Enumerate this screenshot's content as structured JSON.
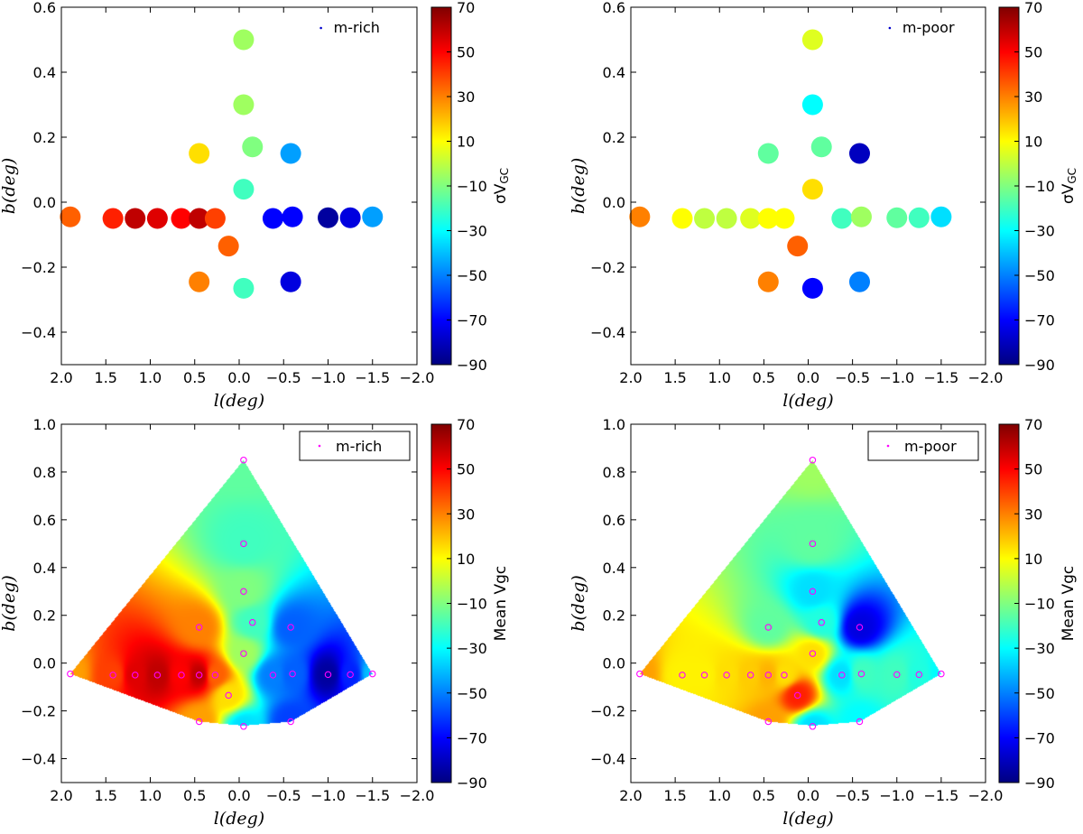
{
  "chart_data": [
    {
      "id": "p1",
      "type": "scatter",
      "xlabel": "l(deg)",
      "ylabel": "b(deg)",
      "xlim": [
        2.0,
        -2.0
      ],
      "ylim": [
        -0.5,
        0.6
      ],
      "xticks": [
        2.0,
        1.5,
        1.0,
        0.5,
        0.0,
        -0.5,
        -1.0,
        -1.5,
        -2.0
      ],
      "xtick_labels": [
        "2.0",
        "1.5",
        "1.0",
        "0.5",
        "0.0",
        "−0.5",
        "−1.0",
        "−1.5",
        "−2.0"
      ],
      "yticks": [
        -0.4,
        -0.2,
        0.0,
        0.2,
        0.4,
        0.6
      ],
      "ytick_labels": [
        "−0.4",
        "−0.2",
        "0.0",
        "0.2",
        "0.4",
        "0.6"
      ],
      "legend": "m-rich",
      "colorbar": {
        "label": "σV",
        "label_sub": "GC",
        "min": -90,
        "max": 70,
        "ticks": [
          -90,
          -70,
          -50,
          -30,
          -10,
          10,
          30,
          50,
          70
        ],
        "tick_labels": [
          "−90",
          "−70",
          "−50",
          "−30",
          "−10",
          "10",
          "30",
          "50",
          "70"
        ]
      },
      "points": [
        {
          "l": 1.9,
          "b": -0.045,
          "v": 35
        },
        {
          "l": 1.42,
          "b": -0.05,
          "v": 45
        },
        {
          "l": 1.17,
          "b": -0.05,
          "v": 60
        },
        {
          "l": 0.92,
          "b": -0.05,
          "v": 55
        },
        {
          "l": 0.65,
          "b": -0.05,
          "v": 50
        },
        {
          "l": 0.45,
          "b": -0.05,
          "v": 60
        },
        {
          "l": 0.27,
          "b": -0.05,
          "v": 40
        },
        {
          "l": 0.45,
          "b": 0.15,
          "v": 15
        },
        {
          "l": 0.45,
          "b": -0.245,
          "v": 30
        },
        {
          "l": 0.12,
          "b": -0.135,
          "v": 35
        },
        {
          "l": -0.05,
          "b": 0.5,
          "v": -5
        },
        {
          "l": -0.05,
          "b": 0.3,
          "v": -5
        },
        {
          "l": -0.15,
          "b": 0.17,
          "v": -10
        },
        {
          "l": -0.05,
          "b": 0.04,
          "v": -20
        },
        {
          "l": -0.05,
          "b": -0.265,
          "v": -20
        },
        {
          "l": -0.58,
          "b": 0.15,
          "v": -45
        },
        {
          "l": -0.38,
          "b": -0.05,
          "v": -70
        },
        {
          "l": -0.6,
          "b": -0.045,
          "v": -70
        },
        {
          "l": -0.58,
          "b": -0.245,
          "v": -75
        },
        {
          "l": -1.0,
          "b": -0.048,
          "v": -85
        },
        {
          "l": -1.25,
          "b": -0.048,
          "v": -75
        },
        {
          "l": -1.5,
          "b": -0.045,
          "v": -45
        }
      ]
    },
    {
      "id": "p2",
      "type": "scatter",
      "xlabel": "l(deg)",
      "ylabel": "b(deg)",
      "xlim": [
        2.0,
        -2.0
      ],
      "ylim": [
        -0.5,
        0.6
      ],
      "xticks": [
        2.0,
        1.5,
        1.0,
        0.5,
        0.0,
        -0.5,
        -1.0,
        -1.5,
        -2.0
      ],
      "xtick_labels": [
        "2.0",
        "1.5",
        "1.0",
        "0.5",
        "0.0",
        "−0.5",
        "−1.0",
        "−1.5",
        "−2.0"
      ],
      "yticks": [
        -0.4,
        -0.2,
        0.0,
        0.2,
        0.4,
        0.6
      ],
      "ytick_labels": [
        "−0.4",
        "−0.2",
        "0.0",
        "0.2",
        "0.4",
        "0.6"
      ],
      "legend": "m-poor",
      "colorbar": {
        "label": "σV",
        "label_sub": "GC",
        "min": -90,
        "max": 70,
        "ticks": [
          -90,
          -70,
          -50,
          -30,
          -10,
          10,
          30,
          50,
          70
        ],
        "tick_labels": [
          "−90",
          "−70",
          "−50",
          "−30",
          "−10",
          "10",
          "30",
          "50",
          "70"
        ]
      },
      "points": [
        {
          "l": 1.9,
          "b": -0.045,
          "v": 30
        },
        {
          "l": 1.42,
          "b": -0.05,
          "v": 10
        },
        {
          "l": 1.17,
          "b": -0.05,
          "v": 0
        },
        {
          "l": 0.92,
          "b": -0.05,
          "v": 0
        },
        {
          "l": 0.65,
          "b": -0.05,
          "v": 5
        },
        {
          "l": 0.45,
          "b": -0.05,
          "v": 10
        },
        {
          "l": 0.27,
          "b": -0.05,
          "v": 10
        },
        {
          "l": 0.45,
          "b": 0.15,
          "v": -15
        },
        {
          "l": 0.45,
          "b": -0.245,
          "v": 30
        },
        {
          "l": 0.12,
          "b": -0.135,
          "v": 35
        },
        {
          "l": -0.05,
          "b": 0.5,
          "v": 5
        },
        {
          "l": -0.05,
          "b": 0.3,
          "v": -30
        },
        {
          "l": -0.15,
          "b": 0.17,
          "v": -15
        },
        {
          "l": -0.05,
          "b": 0.04,
          "v": 15
        },
        {
          "l": -0.05,
          "b": -0.265,
          "v": -70
        },
        {
          "l": -0.58,
          "b": 0.15,
          "v": -80
        },
        {
          "l": -0.38,
          "b": -0.05,
          "v": -20
        },
        {
          "l": -0.6,
          "b": -0.045,
          "v": -5
        },
        {
          "l": -0.58,
          "b": -0.245,
          "v": -50
        },
        {
          "l": -1.0,
          "b": -0.048,
          "v": -15
        },
        {
          "l": -1.25,
          "b": -0.048,
          "v": -20
        },
        {
          "l": -1.5,
          "b": -0.045,
          "v": -35
        }
      ]
    },
    {
      "id": "p3",
      "type": "heatmap",
      "xlabel": "l(deg)",
      "ylabel": "b(deg)",
      "xlim": [
        2.0,
        -2.0
      ],
      "ylim": [
        -0.5,
        1.0
      ],
      "xticks": [
        2.0,
        1.5,
        1.0,
        0.5,
        0.0,
        -0.5,
        -1.0,
        -1.5,
        -2.0
      ],
      "xtick_labels": [
        "2.0",
        "1.5",
        "1.0",
        "0.5",
        "0.0",
        "−0.5",
        "−1.0",
        "−1.5",
        "−2.0"
      ],
      "yticks": [
        -0.4,
        -0.2,
        0.0,
        0.2,
        0.4,
        0.6,
        0.8,
        1.0
      ],
      "ytick_labels": [
        "−0.4",
        "−0.2",
        "0.0",
        "0.2",
        "0.4",
        "0.6",
        "0.8",
        "1.0"
      ],
      "legend": "m-rich",
      "colorbar": {
        "label": "Mean Vgc",
        "label_sub": "",
        "min": -90,
        "max": 70,
        "ticks": [
          -90,
          -70,
          -50,
          -30,
          -10,
          10,
          30,
          50,
          70
        ],
        "tick_labels": [
          "−90",
          "−70",
          "−50",
          "−30",
          "−10",
          "10",
          "30",
          "50",
          "70"
        ]
      },
      "points": [
        {
          "l": 1.9,
          "b": -0.045,
          "v": 25
        },
        {
          "l": 1.42,
          "b": -0.05,
          "v": 40
        },
        {
          "l": 1.17,
          "b": -0.05,
          "v": 55
        },
        {
          "l": 0.92,
          "b": -0.05,
          "v": 60
        },
        {
          "l": 0.65,
          "b": -0.05,
          "v": 50
        },
        {
          "l": 0.45,
          "b": -0.05,
          "v": 60
        },
        {
          "l": 0.27,
          "b": -0.05,
          "v": 35
        },
        {
          "l": 0.45,
          "b": 0.15,
          "v": 30
        },
        {
          "l": 0.45,
          "b": -0.245,
          "v": 25
        },
        {
          "l": 0.12,
          "b": -0.135,
          "v": 15
        },
        {
          "l": -0.05,
          "b": 0.85,
          "v": -15
        },
        {
          "l": -0.05,
          "b": 0.5,
          "v": -20
        },
        {
          "l": -0.05,
          "b": 0.3,
          "v": -10
        },
        {
          "l": -0.15,
          "b": 0.17,
          "v": -20
        },
        {
          "l": -0.05,
          "b": 0.04,
          "v": -5
        },
        {
          "l": -0.05,
          "b": -0.265,
          "v": -35
        },
        {
          "l": -0.58,
          "b": 0.15,
          "v": -55
        },
        {
          "l": -0.38,
          "b": -0.05,
          "v": -50
        },
        {
          "l": -0.6,
          "b": -0.045,
          "v": -55
        },
        {
          "l": -0.58,
          "b": -0.245,
          "v": -60
        },
        {
          "l": -1.0,
          "b": -0.048,
          "v": -85
        },
        {
          "l": -1.25,
          "b": -0.048,
          "v": -65
        },
        {
          "l": -1.5,
          "b": -0.045,
          "v": -40
        }
      ]
    },
    {
      "id": "p4",
      "type": "heatmap",
      "xlabel": "l(deg)",
      "ylabel": "b(deg)",
      "xlim": [
        2.0,
        -2.0
      ],
      "ylim": [
        -0.5,
        1.0
      ],
      "xticks": [
        2.0,
        1.5,
        1.0,
        0.5,
        0.0,
        -0.5,
        -1.0,
        -1.5,
        -2.0
      ],
      "xtick_labels": [
        "2.0",
        "1.5",
        "1.0",
        "0.5",
        "0.0",
        "−0.5",
        "−1.0",
        "−1.5",
        "−2.0"
      ],
      "yticks": [
        -0.4,
        -0.2,
        0.0,
        0.2,
        0.4,
        0.6,
        0.8,
        1.0
      ],
      "ytick_labels": [
        "−0.4",
        "−0.2",
        "0.0",
        "0.2",
        "0.4",
        "0.6",
        "0.8",
        "1.0"
      ],
      "legend": "m-poor",
      "colorbar": {
        "label": "Mean Vgc",
        "label_sub": "",
        "min": -90,
        "max": 70,
        "ticks": [
          -90,
          -70,
          -50,
          -30,
          -10,
          10,
          30,
          50,
          70
        ],
        "tick_labels": [
          "−90",
          "−70",
          "−50",
          "−30",
          "−10",
          "10",
          "30",
          "50",
          "70"
        ]
      },
      "points": [
        {
          "l": 1.9,
          "b": -0.045,
          "v": 25
        },
        {
          "l": 1.42,
          "b": -0.05,
          "v": 12
        },
        {
          "l": 1.17,
          "b": -0.05,
          "v": 12
        },
        {
          "l": 0.92,
          "b": -0.05,
          "v": 15
        },
        {
          "l": 0.65,
          "b": -0.05,
          "v": 18
        },
        {
          "l": 0.45,
          "b": -0.05,
          "v": 22
        },
        {
          "l": 0.27,
          "b": -0.05,
          "v": 15
        },
        {
          "l": 0.45,
          "b": 0.15,
          "v": -15
        },
        {
          "l": 0.45,
          "b": -0.245,
          "v": 25
        },
        {
          "l": 0.12,
          "b": -0.135,
          "v": 45
        },
        {
          "l": -0.05,
          "b": 0.85,
          "v": -5
        },
        {
          "l": -0.05,
          "b": 0.5,
          "v": -15
        },
        {
          "l": -0.05,
          "b": 0.3,
          "v": -35
        },
        {
          "l": -0.15,
          "b": 0.17,
          "v": -25
        },
        {
          "l": -0.05,
          "b": 0.04,
          "v": 15
        },
        {
          "l": -0.05,
          "b": -0.265,
          "v": -35
        },
        {
          "l": -0.58,
          "b": 0.15,
          "v": -75
        },
        {
          "l": -0.38,
          "b": -0.05,
          "v": -35
        },
        {
          "l": -0.6,
          "b": -0.045,
          "v": -20
        },
        {
          "l": -0.58,
          "b": -0.245,
          "v": -30
        },
        {
          "l": -1.0,
          "b": -0.048,
          "v": -20
        },
        {
          "l": -1.25,
          "b": -0.048,
          "v": -25
        },
        {
          "l": -1.5,
          "b": -0.045,
          "v": -30
        }
      ],
      "marker_color": "#ff00ff"
    }
  ]
}
